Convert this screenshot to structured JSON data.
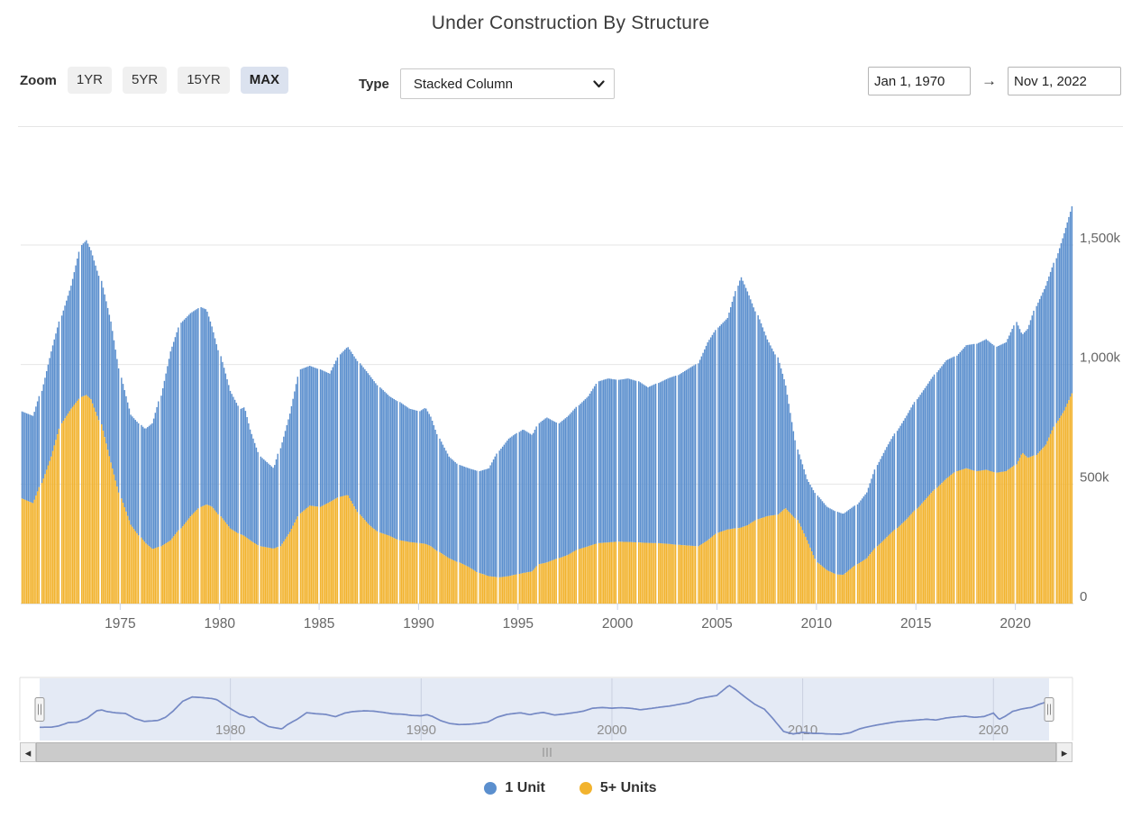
{
  "title": "Under Construction By Structure",
  "toolbar": {
    "zoom_label": "Zoom",
    "zoom_buttons": [
      {
        "label": "1YR",
        "active": false
      },
      {
        "label": "5YR",
        "active": false
      },
      {
        "label": "15YR",
        "active": false
      },
      {
        "label": "MAX",
        "active": true
      }
    ],
    "type_label": "Type",
    "type_value": "Stacked Column",
    "date_from": "Jan 1, 1970",
    "date_arrow": "→",
    "date_to": "Nov 1, 2022"
  },
  "legend": [
    {
      "name": "1 Unit",
      "color": "#5b8fce"
    },
    {
      "name": "5+ Units",
      "color": "#f2b32e"
    }
  ],
  "chart_data": {
    "type": "bar",
    "stacked": true,
    "title": "Under Construction By Structure",
    "x_start": 1970.0,
    "x_end": 2022.917,
    "interval_months": 1,
    "x_tick_labels": [
      "1975",
      "1980",
      "1985",
      "1990",
      "1995",
      "2000",
      "2005",
      "2010",
      "2015",
      "2020"
    ],
    "y_tick_values": [
      0,
      500,
      1000,
      1500
    ],
    "y_tick_labels": [
      "0",
      "500k",
      "1,000k",
      "1,500k"
    ],
    "ylim": [
      0,
      1884
    ],
    "unit": "thousands of housing units (k)",
    "grid": true,
    "legend_position": "bottom",
    "series": [
      {
        "name": "1 Unit",
        "color": "#5b8fce",
        "keypoints": [
          [
            1970.0,
            364
          ],
          [
            1970.6,
            365
          ],
          [
            1971.0,
            385
          ],
          [
            1971.5,
            440
          ],
          [
            1972.0,
            450
          ],
          [
            1972.5,
            515
          ],
          [
            1973.0,
            635
          ],
          [
            1973.25,
            647
          ],
          [
            1973.5,
            623
          ],
          [
            1974.0,
            600
          ],
          [
            1974.5,
            590
          ],
          [
            1975.0,
            505
          ],
          [
            1975.5,
            460
          ],
          [
            1976.2,
            475
          ],
          [
            1976.6,
            527
          ],
          [
            1977.0,
            630
          ],
          [
            1977.5,
            790
          ],
          [
            1978.0,
            860
          ],
          [
            1978.5,
            850
          ],
          [
            1979.0,
            835
          ],
          [
            1979.3,
            815
          ],
          [
            1979.6,
            750
          ],
          [
            1980.0,
            670
          ],
          [
            1980.5,
            575
          ],
          [
            1981.0,
            525
          ],
          [
            1981.2,
            539
          ],
          [
            1981.5,
            463
          ],
          [
            1982.0,
            375
          ],
          [
            1982.7,
            336
          ],
          [
            1983.0,
            410
          ],
          [
            1983.5,
            495
          ],
          [
            1984.0,
            602
          ],
          [
            1984.5,
            585
          ],
          [
            1985.0,
            575
          ],
          [
            1985.5,
            537
          ],
          [
            1986.0,
            596
          ],
          [
            1986.4,
            620
          ],
          [
            1987.0,
            633
          ],
          [
            1987.5,
            628
          ],
          [
            1988.0,
            608
          ],
          [
            1988.5,
            584
          ],
          [
            1989.0,
            578
          ],
          [
            1989.5,
            558
          ],
          [
            1990.0,
            552
          ],
          [
            1990.3,
            570
          ],
          [
            1990.6,
            540
          ],
          [
            1991.0,
            475
          ],
          [
            1991.5,
            425
          ],
          [
            1992.0,
            408
          ],
          [
            1992.5,
            413
          ],
          [
            1993.0,
            426
          ],
          [
            1993.5,
            451
          ],
          [
            1994.0,
            530
          ],
          [
            1994.5,
            575
          ],
          [
            1995.2,
            601
          ],
          [
            1995.7,
            570
          ],
          [
            1996.0,
            590
          ],
          [
            1996.4,
            607
          ],
          [
            1997.0,
            564
          ],
          [
            1997.5,
            581
          ],
          [
            1998.0,
            602
          ],
          [
            1998.5,
            628
          ],
          [
            1999.0,
            677
          ],
          [
            1999.5,
            686
          ],
          [
            2000.0,
            677
          ],
          [
            2000.5,
            684
          ],
          [
            2001.0,
            674
          ],
          [
            2001.5,
            651
          ],
          [
            2002.0,
            670
          ],
          [
            2002.5,
            692
          ],
          [
            2003.0,
            710
          ],
          [
            2003.5,
            738
          ],
          [
            2004.0,
            765
          ],
          [
            2004.5,
            828
          ],
          [
            2005.0,
            858
          ],
          [
            2005.5,
            885
          ],
          [
            2006.0,
            1014
          ],
          [
            2006.15,
            1050
          ],
          [
            2006.5,
            978
          ],
          [
            2007.0,
            853
          ],
          [
            2007.5,
            739
          ],
          [
            2008.0,
            658
          ],
          [
            2008.4,
            520
          ],
          [
            2009.0,
            295
          ],
          [
            2009.5,
            255
          ],
          [
            2010.0,
            280
          ],
          [
            2010.5,
            265
          ],
          [
            2011.0,
            262
          ],
          [
            2011.3,
            255
          ],
          [
            2012.0,
            250
          ],
          [
            2012.5,
            275
          ],
          [
            2013.0,
            340
          ],
          [
            2013.5,
            377
          ],
          [
            2014.0,
            407
          ],
          [
            2014.5,
            433
          ],
          [
            2015.0,
            458
          ],
          [
            2015.5,
            470
          ],
          [
            2016.0,
            483
          ],
          [
            2016.5,
            495
          ],
          [
            2017.0,
            483
          ],
          [
            2017.5,
            515
          ],
          [
            2018.0,
            533
          ],
          [
            2018.5,
            546
          ],
          [
            2019.0,
            527
          ],
          [
            2019.5,
            539
          ],
          [
            2020.0,
            596
          ],
          [
            2020.3,
            493
          ],
          [
            2020.6,
            540
          ],
          [
            2021.0,
            623
          ],
          [
            2021.5,
            665
          ],
          [
            2022.0,
            690
          ],
          [
            2022.4,
            740
          ],
          [
            2022.87,
            786
          ]
        ]
      },
      {
        "name": "5+ Units",
        "color": "#f2b32e",
        "keypoints": [
          [
            1970.0,
            440
          ],
          [
            1970.6,
            420
          ],
          [
            1971.0,
            505
          ],
          [
            1971.5,
            615
          ],
          [
            1972.0,
            755
          ],
          [
            1972.5,
            815
          ],
          [
            1973.0,
            865
          ],
          [
            1973.25,
            873
          ],
          [
            1973.5,
            855
          ],
          [
            1974.0,
            750
          ],
          [
            1974.5,
            590
          ],
          [
            1975.0,
            440
          ],
          [
            1975.5,
            330
          ],
          [
            1976.2,
            255
          ],
          [
            1976.6,
            228
          ],
          [
            1977.0,
            240
          ],
          [
            1977.5,
            265
          ],
          [
            1978.0,
            315
          ],
          [
            1978.5,
            365
          ],
          [
            1979.0,
            405
          ],
          [
            1979.3,
            415
          ],
          [
            1979.6,
            405
          ],
          [
            1980.0,
            365
          ],
          [
            1980.5,
            315
          ],
          [
            1981.0,
            290
          ],
          [
            1981.2,
            283
          ],
          [
            1981.5,
            265
          ],
          [
            1982.0,
            240
          ],
          [
            1982.7,
            230
          ],
          [
            1983.0,
            240
          ],
          [
            1983.5,
            300
          ],
          [
            1984.0,
            378
          ],
          [
            1984.5,
            410
          ],
          [
            1985.0,
            405
          ],
          [
            1985.5,
            425
          ],
          [
            1986.0,
            447
          ],
          [
            1986.4,
            455
          ],
          [
            1987.0,
            372
          ],
          [
            1987.5,
            328
          ],
          [
            1988.0,
            297
          ],
          [
            1988.5,
            284
          ],
          [
            1989.0,
            265
          ],
          [
            1989.5,
            258
          ],
          [
            1990.0,
            253
          ],
          [
            1990.3,
            250
          ],
          [
            1990.6,
            240
          ],
          [
            1991.0,
            215
          ],
          [
            1991.5,
            190
          ],
          [
            1992.0,
            172
          ],
          [
            1992.5,
            153
          ],
          [
            1993.0,
            128
          ],
          [
            1993.5,
            115
          ],
          [
            1994.0,
            110
          ],
          [
            1994.5,
            115
          ],
          [
            1995.2,
            128
          ],
          [
            1995.7,
            135
          ],
          [
            1996.0,
            165
          ],
          [
            1996.4,
            172
          ],
          [
            1997.0,
            190
          ],
          [
            1997.5,
            205
          ],
          [
            1998.0,
            228
          ],
          [
            1998.5,
            240
          ],
          [
            1999.0,
            253
          ],
          [
            1999.5,
            256
          ],
          [
            2000.0,
            259
          ],
          [
            2000.5,
            258
          ],
          [
            2001.0,
            256
          ],
          [
            2001.5,
            254
          ],
          [
            2002.0,
            253
          ],
          [
            2002.5,
            250
          ],
          [
            2003.0,
            246
          ],
          [
            2003.5,
            243
          ],
          [
            2004.0,
            240
          ],
          [
            2004.5,
            265
          ],
          [
            2005.0,
            297
          ],
          [
            2005.5,
            310
          ],
          [
            2006.0,
            316
          ],
          [
            2006.15,
            318
          ],
          [
            2006.5,
            328
          ],
          [
            2007.0,
            353
          ],
          [
            2007.5,
            366
          ],
          [
            2008.0,
            372
          ],
          [
            2008.4,
            400
          ],
          [
            2009.0,
            350
          ],
          [
            2009.5,
            265
          ],
          [
            2010.0,
            172
          ],
          [
            2010.5,
            140
          ],
          [
            2011.0,
            122
          ],
          [
            2011.3,
            120
          ],
          [
            2012.0,
            165
          ],
          [
            2012.5,
            190
          ],
          [
            2013.0,
            240
          ],
          [
            2013.5,
            278
          ],
          [
            2014.0,
            316
          ],
          [
            2014.5,
            353
          ],
          [
            2015.0,
            397
          ],
          [
            2015.5,
            441
          ],
          [
            2016.0,
            485
          ],
          [
            2016.5,
            523
          ],
          [
            2017.0,
            554
          ],
          [
            2017.5,
            566
          ],
          [
            2018.0,
            554
          ],
          [
            2018.5,
            560
          ],
          [
            2019.0,
            548
          ],
          [
            2019.5,
            554
          ],
          [
            2020.0,
            582
          ],
          [
            2020.3,
            632
          ],
          [
            2020.6,
            610
          ],
          [
            2021.0,
            622
          ],
          [
            2021.5,
            665
          ],
          [
            2022.0,
            755
          ],
          [
            2022.4,
            805
          ],
          [
            2022.87,
            886
          ]
        ]
      }
    ]
  },
  "navigator": {
    "tick_labels": [
      "1980",
      "1990",
      "2000",
      "2010",
      "2020"
    ],
    "source_series": "1 Unit",
    "line_color": "#7589c4",
    "fill_color": "#e4eaf5",
    "gridline_color": "#c9d0e0",
    "label_color": "#8f8f8f"
  },
  "scrollbar": {
    "left_arrow": "◂",
    "right_arrow": "▸",
    "grip": "|||",
    "thumb_color": "#cbcbcb",
    "button_color": "#efefef"
  },
  "axis_style": {
    "gridline_color": "#e6e6e6",
    "baseline_color": "#d0d0d0",
    "tick_color": "#ccd6eb",
    "label_color": "#666666"
  }
}
